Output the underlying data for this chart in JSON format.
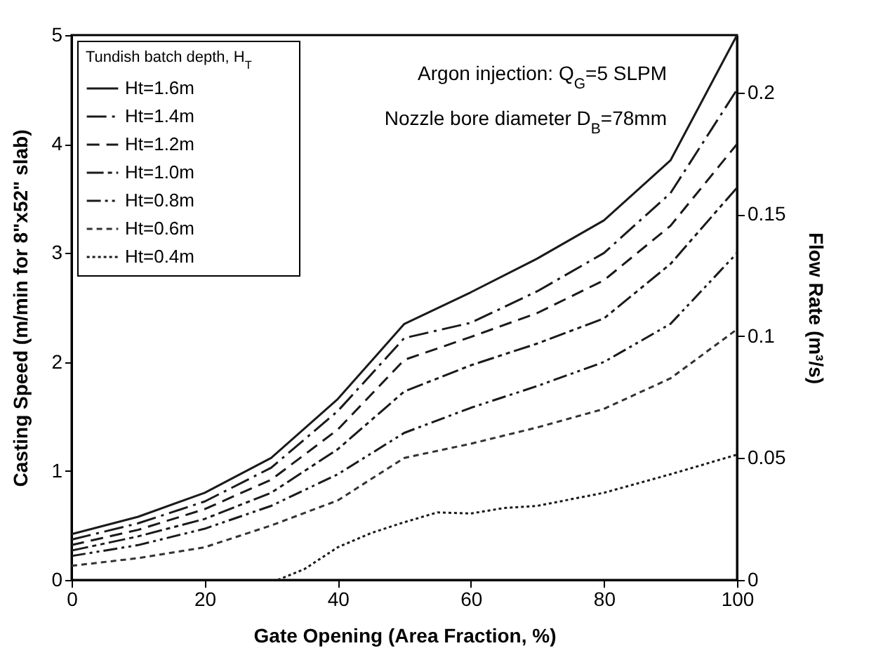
{
  "chart_data": {
    "type": "line",
    "xlabel": "Gate Opening (Area Fraction, %)",
    "ylabel": "Casting Speed (m/min for 8\"x52\" slab)",
    "y2label": "Flow Rate (m³/s)",
    "legend_title": "Tundish batch depth, H$_{T}$",
    "annotations": [
      "Argon injection: Q$_{G}$=5 SLPM",
      "Nozzle bore diameter D$_{B}$=78mm"
    ],
    "x": [
      0,
      10,
      20,
      30,
      40,
      50,
      60,
      70,
      80,
      90,
      100
    ],
    "series": [
      {
        "name": "Ht=1.6m",
        "color": "#1a1a1a",
        "line_style": "solid",
        "values": [
          0.42,
          0.58,
          0.8,
          1.12,
          1.66,
          2.35,
          2.64,
          2.95,
          3.3,
          3.85,
          5.0
        ]
      },
      {
        "name": "Ht=1.4m",
        "color": "#1a1a1a",
        "line_style": "dashed",
        "values": [
          0.37,
          0.52,
          0.72,
          1.03,
          1.55,
          2.22,
          2.36,
          2.65,
          3.0,
          3.55,
          4.5
        ]
      },
      {
        "name": "Ht=1.2m",
        "color": "#1a1a1a",
        "line_style": "dashed",
        "values": [
          0.32,
          0.46,
          0.65,
          0.92,
          1.38,
          2.02,
          2.23,
          2.45,
          2.75,
          3.25,
          4.0
        ]
      },
      {
        "name": "Ht=1.0m",
        "color": "#1a1a1a",
        "line_style": "dashed",
        "values": [
          0.27,
          0.4,
          0.56,
          0.8,
          1.2,
          1.73,
          1.97,
          2.17,
          2.4,
          2.9,
          3.6
        ]
      },
      {
        "name": "Ht=0.8m",
        "color": "#1a1a1a",
        "line_style": "dashed",
        "values": [
          0.22,
          0.32,
          0.47,
          0.68,
          0.97,
          1.35,
          1.58,
          1.78,
          2.0,
          2.35,
          3.0
        ]
      },
      {
        "name": "Ht=0.6m",
        "color": "#333333",
        "line_style": "dashed",
        "values": [
          0.13,
          0.2,
          0.3,
          0.5,
          0.73,
          1.12,
          1.25,
          1.4,
          1.57,
          1.85,
          2.3
        ]
      },
      {
        "name": "Ht=0.4m",
        "color": "#1a1a1a",
        "line_style": "dotted",
        "x": [
          31,
          35,
          40,
          45,
          50,
          55,
          60,
          65,
          70,
          80,
          90,
          100
        ],
        "values": [
          0,
          0.1,
          0.3,
          0.43,
          0.53,
          0.62,
          0.61,
          0.66,
          0.68,
          0.8,
          0.97,
          1.15
        ]
      }
    ],
    "xlim": [
      0,
      100
    ],
    "xticks": [
      0,
      20,
      40,
      60,
      80,
      100
    ],
    "ylim": [
      0,
      5
    ],
    "yticks": [
      0,
      1,
      2,
      3,
      4,
      5
    ],
    "y2lim": [
      0,
      0.2235
    ],
    "y2ticks": [
      0,
      0.05,
      0.1,
      0.15,
      0.2
    ],
    "grid": false,
    "legend": "top left",
    "marker": "none"
  }
}
